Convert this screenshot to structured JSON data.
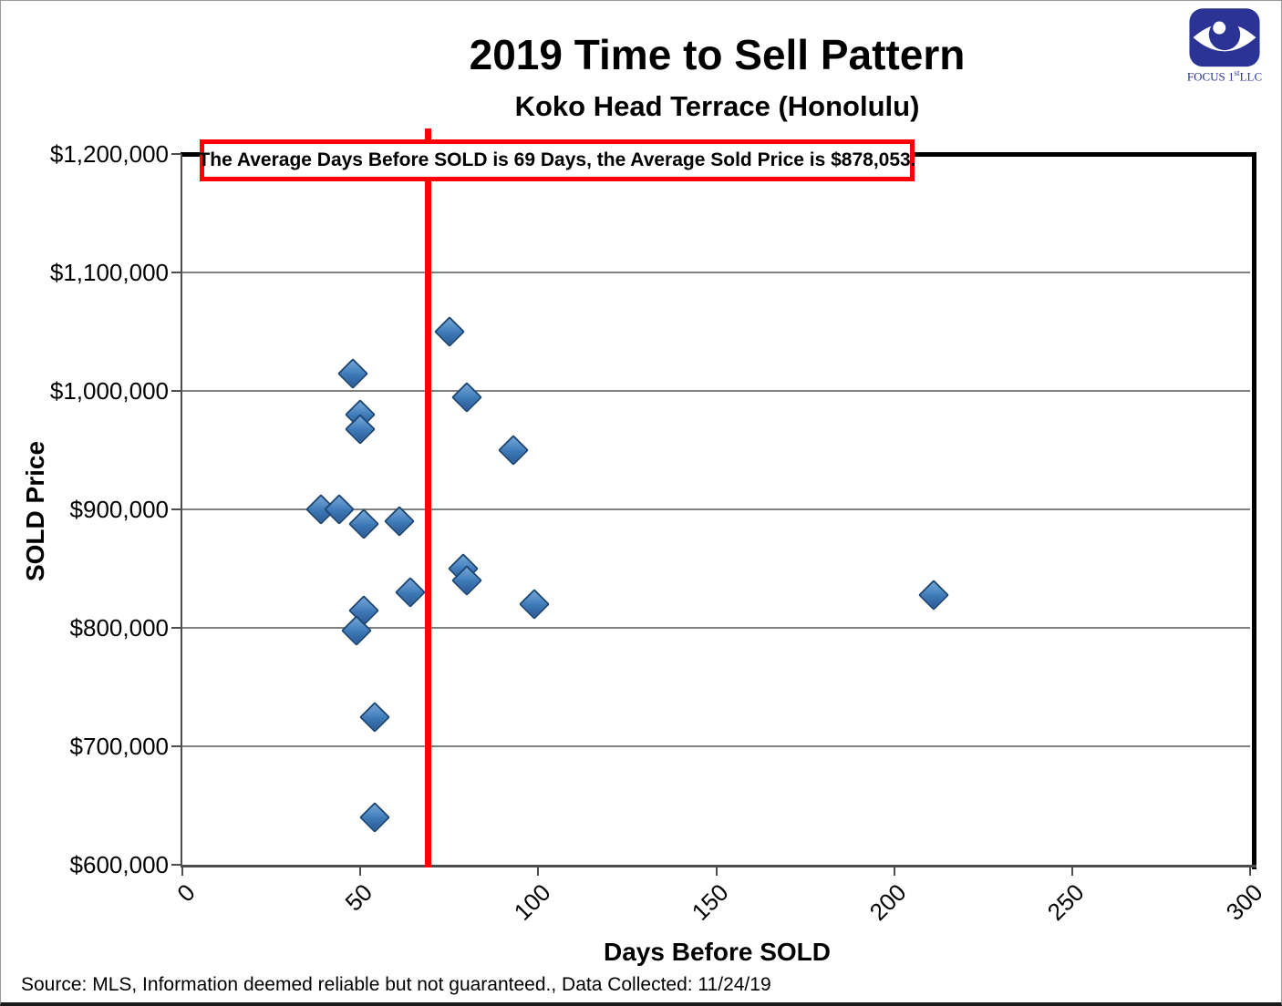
{
  "header": {
    "title": "2019 Time to Sell Pattern",
    "subtitle": "Koko Head Terrace (Honolulu)"
  },
  "logo": {
    "name": "FOCUS 1st LLC",
    "text_prefix": "FOCUS 1",
    "text_sup": "st",
    "text_suffix": "LLC",
    "color": "#2b3494"
  },
  "annotation": {
    "text": "The Average Days Before SOLD is 69 Days, the Average Sold Price is $878,053."
  },
  "footer": {
    "source": "Source: MLS, Information deemed reliable but not guaranteed., Data Collected: 11/24/19"
  },
  "chart_data": {
    "type": "scatter",
    "title": "2019 Time to Sell Pattern",
    "subtitle": "Koko Head Terrace (Honolulu)",
    "xlabel": "Days Before SOLD",
    "ylabel": "SOLD Price",
    "xlim": [
      0,
      300
    ],
    "ylim": [
      600000,
      1200000
    ],
    "x_ticks": [
      0,
      50,
      100,
      150,
      200,
      250,
      300
    ],
    "y_ticks": [
      {
        "value": 1200000,
        "label": "$1,200,000"
      },
      {
        "value": 1100000,
        "label": "$1,100,000"
      },
      {
        "value": 1000000,
        "label": "$1,000,000"
      },
      {
        "value": 900000,
        "label": "$900,000"
      },
      {
        "value": 800000,
        "label": "$800,000"
      },
      {
        "value": 700000,
        "label": "$700,000"
      },
      {
        "value": 600000,
        "label": "$600,000"
      }
    ],
    "grid": "horizontal-only",
    "legend": "none",
    "avg_days_line": 69,
    "avg_sold_price": 878053,
    "points": [
      {
        "days": 75,
        "price": 1050000
      },
      {
        "days": 48,
        "price": 1015000
      },
      {
        "days": 50,
        "price": 980000
      },
      {
        "days": 50,
        "price": 968000
      },
      {
        "days": 80,
        "price": 995000
      },
      {
        "days": 93,
        "price": 950000
      },
      {
        "days": 39,
        "price": 900000
      },
      {
        "days": 44,
        "price": 900000
      },
      {
        "days": 51,
        "price": 888000
      },
      {
        "days": 61,
        "price": 890000
      },
      {
        "days": 79,
        "price": 850000
      },
      {
        "days": 80,
        "price": 840000
      },
      {
        "days": 64,
        "price": 830000
      },
      {
        "days": 99,
        "price": 820000
      },
      {
        "days": 211,
        "price": 828000
      },
      {
        "days": 51,
        "price": 815000
      },
      {
        "days": 49,
        "price": 798000
      },
      {
        "days": 54,
        "price": 725000
      },
      {
        "days": 54,
        "price": 640000
      }
    ],
    "colors": {
      "marker_fill": "#3d78b6",
      "marker_border": "#1d4876",
      "avg_line": "#fe0000",
      "annotation_border": "#fe0000",
      "gridline": "#808080",
      "axis": "#4d4d4d",
      "frame": "#000000"
    }
  }
}
